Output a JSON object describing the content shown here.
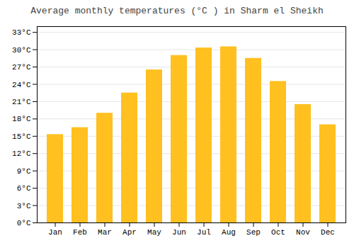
{
  "chart_data": {
    "type": "bar",
    "title": "Average monthly temperatures (°C ) in Sharm el Sheikh",
    "categories": [
      "Jan",
      "Feb",
      "Mar",
      "Apr",
      "May",
      "Jun",
      "Jul",
      "Aug",
      "Sep",
      "Oct",
      "Nov",
      "Dec"
    ],
    "values": [
      15.3,
      16.5,
      19.0,
      22.5,
      26.5,
      29.0,
      30.3,
      30.5,
      28.5,
      24.5,
      20.5,
      17.0
    ],
    "color": "#FFC020",
    "ylim": [
      0,
      34
    ],
    "yticks": [
      {
        "value": 0,
        "label": "0°C"
      },
      {
        "value": 3,
        "label": "3°C"
      },
      {
        "value": 6,
        "label": "6°C"
      },
      {
        "value": 9,
        "label": "9°C"
      },
      {
        "value": 12,
        "label": "12°C"
      },
      {
        "value": 15,
        "label": "15°C"
      },
      {
        "value": 18,
        "label": "18°C"
      },
      {
        "value": 21,
        "label": "21°C"
      },
      {
        "value": 24,
        "label": "24°C"
      },
      {
        "value": 27,
        "label": "27°C"
      },
      {
        "value": 30,
        "label": "30°C"
      },
      {
        "value": 33,
        "label": "33°C"
      }
    ],
    "grid": true
  }
}
